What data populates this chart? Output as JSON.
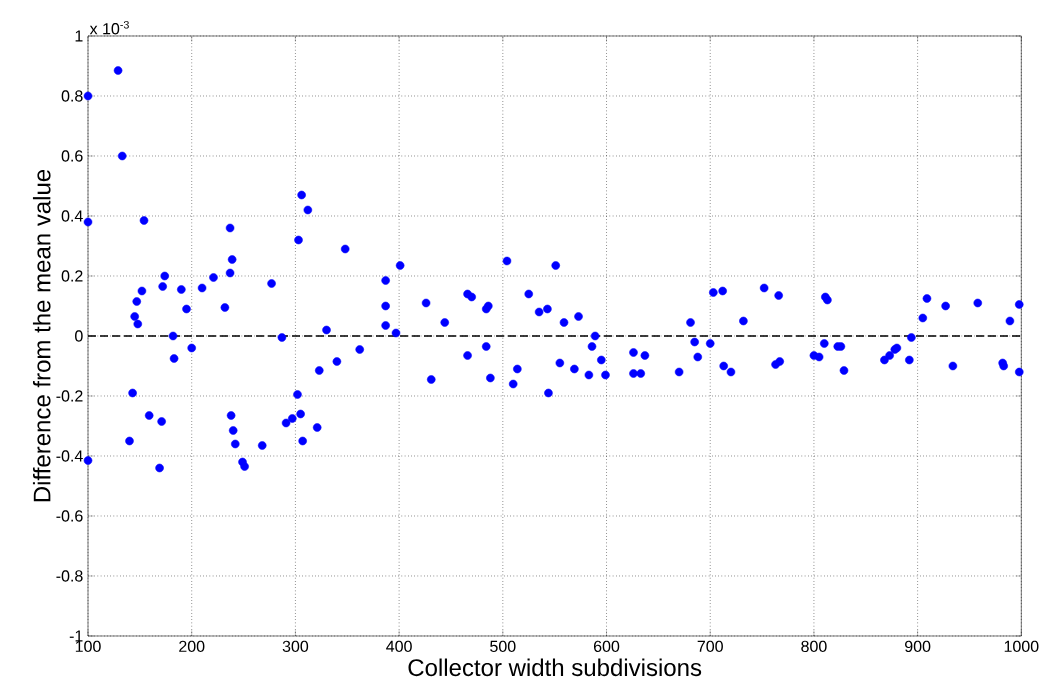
{
  "chart_data": {
    "type": "scatter",
    "xlabel": "Collector width subdivisions",
    "ylabel": "Difference from the mean value",
    "annotations": [
      "x 10$^{-3}$"
    ],
    "xlim": [
      100,
      1000
    ],
    "ylim": [
      -1,
      1
    ],
    "xticks": [
      100,
      200,
      300,
      400,
      500,
      600,
      700,
      800,
      900,
      1000
    ],
    "yticks": [
      -1,
      -0.8,
      -0.6,
      -0.4,
      -0.2,
      0,
      0.2,
      0.4,
      0.6,
      0.8,
      1
    ],
    "grid": true,
    "marker": "circle",
    "ref_lines": [
      {
        "axis": "y",
        "value": 0,
        "color": "#000000",
        "line_style": "dashed"
      }
    ],
    "series": [
      {
        "color": "#0000ff",
        "x": [
          100,
          129,
          133,
          100,
          154,
          237,
          306,
          312,
          303,
          348,
          239,
          237,
          174,
          401,
          221,
          172,
          190,
          210,
          152,
          147,
          277,
          387,
          387,
          387,
          397,
          195,
          232,
          145,
          148,
          330,
          182,
          287,
          200,
          183,
          362,
          340,
          323,
          143,
          302,
          159,
          171,
          238,
          305,
          240,
          291,
          297,
          321,
          140,
          242,
          307,
          268,
          100,
          169,
          249,
          251,
          426,
          444,
          466,
          470,
          484,
          486,
          504,
          551,
          525,
          535,
          543,
          559,
          573,
          589,
          586,
          595,
          484,
          466,
          431,
          488,
          514,
          510,
          544,
          555,
          569,
          583,
          599,
          626,
          637,
          626,
          633,
          670,
          681,
          685,
          688,
          700,
          703,
          712,
          752,
          766,
          732,
          713,
          720,
          763,
          767,
          800,
          805,
          810,
          811,
          813,
          823,
          826,
          829,
          868,
          873,
          878,
          880,
          892,
          894,
          905,
          909,
          927,
          934,
          958,
          982,
          983,
          989,
          998,
          998
        ],
        "values": [
          0.8,
          0.885,
          0.6,
          0.38,
          0.385,
          0.36,
          0.47,
          0.42,
          0.32,
          0.29,
          0.255,
          0.21,
          0.2,
          0.235,
          0.195,
          0.165,
          0.155,
          0.16,
          0.15,
          0.115,
          0.175,
          0.185,
          0.1,
          0.035,
          0.01,
          0.09,
          0.095,
          0.065,
          0.04,
          0.02,
          0.0,
          -0.005,
          -0.04,
          -0.075,
          -0.045,
          -0.085,
          -0.115,
          -0.19,
          -0.195,
          -0.265,
          -0.285,
          -0.265,
          -0.26,
          -0.315,
          -0.29,
          -0.275,
          -0.305,
          -0.35,
          -0.36,
          -0.35,
          -0.365,
          -0.415,
          -0.44,
          -0.42,
          -0.435,
          0.11,
          0.045,
          0.14,
          0.13,
          0.09,
          0.1,
          0.25,
          0.235,
          0.14,
          0.08,
          0.09,
          0.045,
          0.065,
          0.0,
          -0.035,
          -0.08,
          -0.035,
          -0.065,
          -0.145,
          -0.14,
          -0.11,
          -0.16,
          -0.19,
          -0.09,
          -0.11,
          -0.13,
          -0.13,
          -0.055,
          -0.065,
          -0.125,
          -0.125,
          -0.12,
          0.045,
          -0.02,
          -0.07,
          -0.025,
          0.145,
          0.15,
          0.16,
          0.135,
          0.05,
          -0.1,
          -0.12,
          -0.095,
          -0.085,
          -0.065,
          -0.07,
          -0.025,
          0.13,
          0.12,
          -0.035,
          -0.035,
          -0.115,
          -0.08,
          -0.065,
          -0.045,
          -0.04,
          -0.08,
          -0.005,
          0.06,
          0.125,
          0.1,
          -0.1,
          0.11,
          -0.09,
          -0.1,
          0.05,
          0.105,
          -0.12
        ]
      }
    ]
  }
}
